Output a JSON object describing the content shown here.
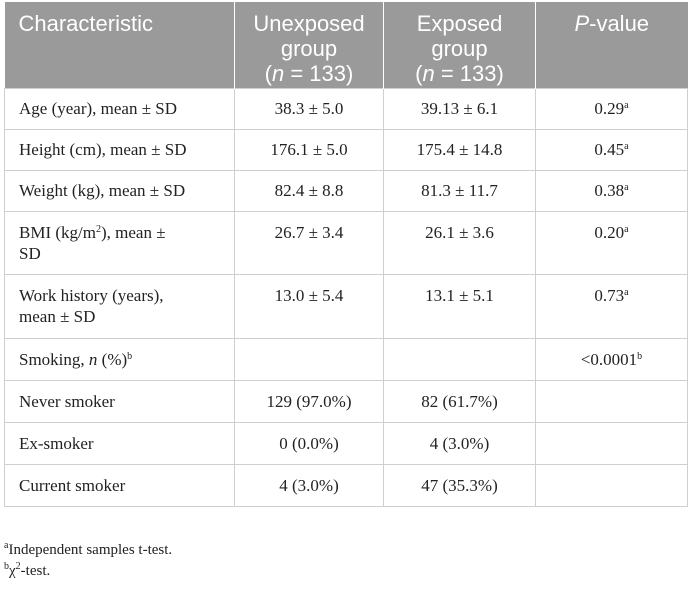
{
  "header": {
    "characteristic": "Characteristic",
    "unexposed": "Unexposed group",
    "unexposed_n": "(n = 133)",
    "exposed": "Exposed group",
    "exposed_n": "(n = 133)",
    "pvalue": "P-value"
  },
  "rows": [
    {
      "label": "Age (year), mean ± SD",
      "unexposed": "38.3 ± 5.0",
      "exposed": "39.13 ± 6.1",
      "p": "0.29",
      "p_sup": "a"
    },
    {
      "label": "Height (cm), mean ± SD",
      "unexposed": "176.1 ± 5.0",
      "exposed": "175.4 ± 14.8",
      "p": "0.45",
      "p_sup": "a"
    },
    {
      "label": "Weight (kg), mean ± SD",
      "unexposed": "82.4 ± 8.8",
      "exposed": "81.3 ± 11.7",
      "p": "0.38",
      "p_sup": "a"
    },
    {
      "label_pre": "BMI (kg/m",
      "label_sup": "2",
      "label_post": "), mean ±",
      "label_line2": "SD",
      "unexposed": "26.7 ± 3.4",
      "exposed": "26.1 ± 3.6",
      "p": "0.20",
      "p_sup": "a"
    },
    {
      "label_line1": "Work history (years),",
      "label_line2": "mean ± SD",
      "unexposed": "13.0 ± 5.4",
      "exposed": "13.1 ± 5.1",
      "p": "0.73",
      "p_sup": "a"
    },
    {
      "label_pre": "Smoking, ",
      "label_italic": "n",
      "label_post": " (%)",
      "label_sup": "b",
      "unexposed": "",
      "exposed": "",
      "p": "<0.0001",
      "p_sup": "b"
    },
    {
      "label": "Never smoker",
      "unexposed": "129 (97.0%)",
      "exposed": "82 (61.7%)",
      "p": ""
    },
    {
      "label": "Ex-smoker",
      "unexposed": "0 (0.0%)",
      "exposed": "4 (3.0%)",
      "p": ""
    },
    {
      "label": "Current smoker",
      "unexposed": "4 (3.0%)",
      "exposed": "47 (35.3%)",
      "p": ""
    }
  ],
  "footnotes": [
    {
      "mark": "a",
      "text": "Independent samples t-test."
    },
    {
      "mark": "b",
      "text_pre": "χ",
      "text_sup": "2",
      "text_post": "-test."
    }
  ]
}
